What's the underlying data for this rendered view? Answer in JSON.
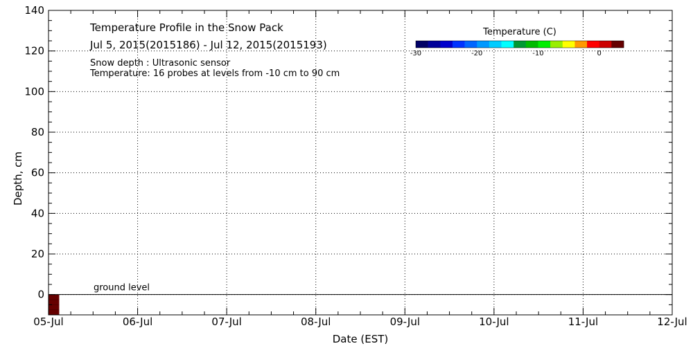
{
  "chart_data": {
    "type": "heatmap",
    "title": "Temperature Profile in the Snow Pack",
    "date_range": "Jul  5, 2015(2015186) - Jul 12, 2015(2015193)",
    "info_lines": [
      "Snow depth : Ultrasonic sensor",
      "Temperature: 16 probes at levels from -10 cm to 90 cm"
    ],
    "xlabel": "Date (EST)",
    "ylabel": "Depth, cm",
    "x_categories": [
      "05-Jul",
      "06-Jul",
      "07-Jul",
      "08-Jul",
      "09-Jul",
      "10-Jul",
      "11-Jul",
      "12-Jul"
    ],
    "y_ticks": [
      0,
      20,
      40,
      60,
      80,
      100,
      120,
      140
    ],
    "ylim": [
      -10,
      140
    ],
    "grid": true,
    "ground_level_label": "ground level",
    "ground_level_value": 0,
    "colorbar": {
      "title": "Temperature (C)",
      "ticks": [
        -30,
        -20,
        -10,
        0
      ],
      "range": [
        -30,
        4
      ],
      "colors": [
        "#000066",
        "#000099",
        "#0000cc",
        "#0033ff",
        "#0066ff",
        "#0099ff",
        "#00ccff",
        "#00ffff",
        "#009933",
        "#00bb00",
        "#00ee00",
        "#99ee00",
        "#ffff00",
        "#ff9900",
        "#ff0000",
        "#cc0000",
        "#660000"
      ]
    },
    "cells": [
      {
        "x_start_day": 0,
        "x_end_day": 0.12,
        "y_from": -10,
        "y_to": 0,
        "color": "#660000"
      }
    ]
  }
}
